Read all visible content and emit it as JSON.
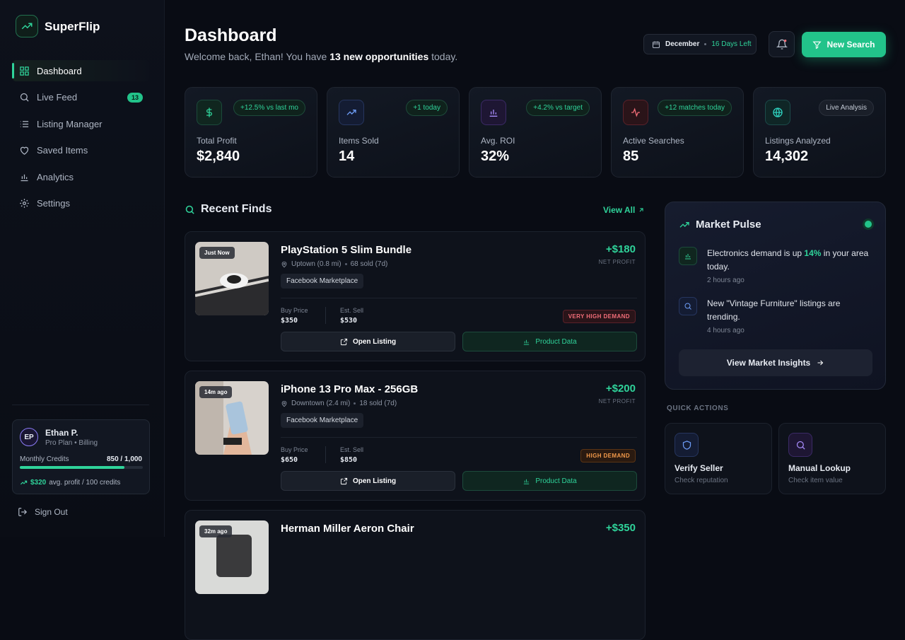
{
  "sidebar": {
    "brand": "SuperFlip",
    "nav": [
      {
        "label": "Dashboard"
      },
      {
        "label": "Live Feed",
        "badge": "13"
      },
      {
        "label": "Listing Manager"
      },
      {
        "label": "Saved Items"
      },
      {
        "label": "Analytics"
      },
      {
        "label": "Settings"
      }
    ],
    "user": {
      "initials": "EP",
      "name": "Ethan P.",
      "plan": "Pro Plan • Billing",
      "credits_label": "Monthly Credits",
      "credits": {
        "used": 850,
        "total": 1000,
        "label": "850 / 1,000"
      },
      "avg_profit": "$320",
      "avg_text": "avg. profit / 100 credits"
    },
    "sign_out": "Sign Out"
  },
  "header": {
    "title": "Dashboard",
    "welcome_pre": "Welcome back, Ethan! You have",
    "welcome_bold": "13 new opportunities",
    "welcome_post": "today.",
    "month": "December",
    "days_left": "16 Days Left",
    "new_search": "New Search"
  },
  "stats": [
    {
      "badge": "+12.5% vs last mo",
      "label": "Total Profit",
      "value": "$2,840"
    },
    {
      "badge": "+1 today",
      "label": "Items Sold",
      "value": "14"
    },
    {
      "badge": "+4.2% vs target",
      "label": "Avg. ROI",
      "value": "32%"
    },
    {
      "badge": "+12 matches today",
      "label": "Active Searches",
      "value": "85"
    },
    {
      "badge": "Live Analysis",
      "label": "Listings Analyzed",
      "value": "14,302"
    }
  ],
  "recent": {
    "title": "Recent Finds",
    "view_all": "View All",
    "finds": [
      {
        "time": "Just Now",
        "title": "PlayStation 5 Slim Bundle",
        "location": "Uptown (0.8 mi)",
        "sold": "68 sold (7d)",
        "marketplace": "Facebook Marketplace",
        "profit": "+$180",
        "profit_label": "NET PROFIT",
        "buy_label": "Buy Price",
        "buy": "$350",
        "sell_label": "Est. Sell",
        "sell": "$530",
        "demand": "VERY HIGH DEMAND",
        "open": "Open Listing",
        "data": "Product Data"
      },
      {
        "time": "14m ago",
        "title": "iPhone 13 Pro Max - 256GB",
        "location": "Downtown (2.4 mi)",
        "sold": "18 sold (7d)",
        "marketplace": "Facebook Marketplace",
        "profit": "+$200",
        "profit_label": "NET PROFIT",
        "buy_label": "Buy Price",
        "buy": "$650",
        "sell_label": "Est. Sell",
        "sell": "$850",
        "demand": "HIGH DEMAND",
        "open": "Open Listing",
        "data": "Product Data"
      },
      {
        "time": "32m ago",
        "title": "Herman Miller Aeron Chair",
        "profit": "+$350"
      }
    ]
  },
  "pulse": {
    "title": "Market Pulse",
    "items": [
      {
        "pre": "Electronics demand is up",
        "highlight": "14%",
        "post": "in your area today.",
        "time": "2 hours ago"
      },
      {
        "pre": "New \"Vintage Furniture\" listings are trending.",
        "time": "4 hours ago"
      }
    ],
    "button": "View Market Insights"
  },
  "quick_actions": {
    "title": "QUICK ACTIONS",
    "items": [
      {
        "title": "Verify Seller",
        "subtitle": "Check reputation"
      },
      {
        "title": "Manual Lookup",
        "subtitle": "Check item value"
      }
    ]
  }
}
